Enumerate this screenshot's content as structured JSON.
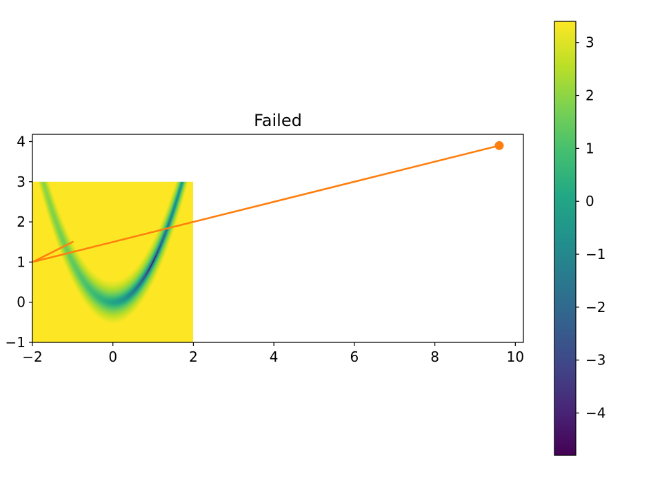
{
  "chart_data": {
    "type": "heatmap",
    "title": "Failed",
    "xlabel": "",
    "ylabel": "",
    "xlim": [
      -2,
      10.2
    ],
    "ylim": [
      -1,
      4.18
    ],
    "x_ticks": [
      "−2",
      "0",
      "2",
      "4",
      "6",
      "8",
      "10"
    ],
    "y_ticks": [
      "−1",
      "0",
      "1",
      "2",
      "3",
      "4"
    ],
    "heatmap": {
      "function": "log((1 - x)^2 + 100 (y - x^2)^2)",
      "x_range": [
        -2,
        2
      ],
      "y_range": [
        -1,
        3
      ],
      "colormap": "viridis",
      "color_range": [
        -4.8,
        3.4
      ]
    },
    "colorbar": {
      "range": [
        -4.8,
        3.4
      ],
      "ticks": [
        "3",
        "2",
        "1",
        "0",
        "−1",
        "−2",
        "−3",
        "−4"
      ]
    },
    "series": [
      {
        "type": "line",
        "color": "#ff7f0e",
        "points": [
          [
            -1.0,
            1.5
          ],
          [
            -2.0,
            1.0
          ],
          [
            9.6,
            3.9
          ]
        ],
        "end_marker": "circle"
      }
    ]
  }
}
